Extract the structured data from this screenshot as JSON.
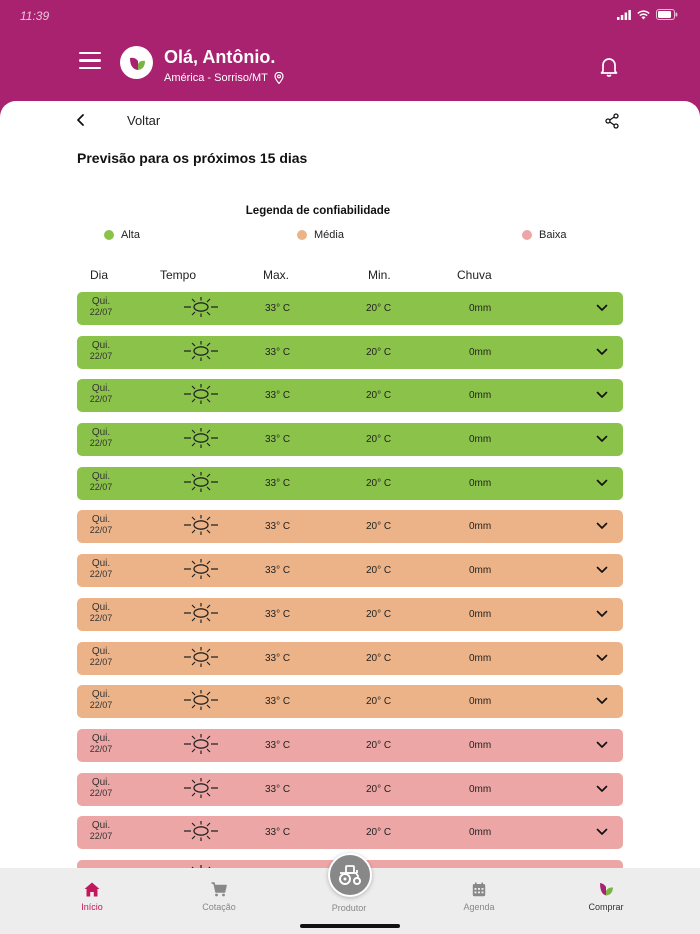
{
  "status_bar": {
    "time": "11:39"
  },
  "header": {
    "greeting": "Olá, Antônio.",
    "location": "América - Sorriso/MT"
  },
  "nav": {
    "back_label": "Voltar"
  },
  "page_title": "Previsão para os próximos 15 dias",
  "legend": {
    "title": "Legenda de confiabilidade",
    "items": [
      {
        "label": "Alta",
        "color": "#8bc34a"
      },
      {
        "label": "Média",
        "color": "#edb388"
      },
      {
        "label": "Baixa",
        "color": "#eda6a6"
      }
    ]
  },
  "columns": {
    "day": "Dia",
    "weather": "Tempo",
    "max": "Max.",
    "min": "Min.",
    "rain": "Chuva"
  },
  "colors": {
    "alta": "#8bc34a",
    "media": "#edb388",
    "baixa": "#eda6a6",
    "brand": "#a8226f",
    "accent": "#c2185b"
  },
  "rows": [
    {
      "day": "Qui.",
      "date": "22/07",
      "icon": "sun-icon",
      "max": "33° C",
      "min": "20° C",
      "rain": "0mm",
      "confidence": "alta"
    },
    {
      "day": "Qui.",
      "date": "22/07",
      "icon": "sun-icon",
      "max": "33° C",
      "min": "20° C",
      "rain": "0mm",
      "confidence": "alta"
    },
    {
      "day": "Qui.",
      "date": "22/07",
      "icon": "sun-icon",
      "max": "33° C",
      "min": "20° C",
      "rain": "0mm",
      "confidence": "alta"
    },
    {
      "day": "Qui.",
      "date": "22/07",
      "icon": "sun-icon",
      "max": "33° C",
      "min": "20° C",
      "rain": "0mm",
      "confidence": "alta"
    },
    {
      "day": "Qui.",
      "date": "22/07",
      "icon": "sun-icon",
      "max": "33° C",
      "min": "20° C",
      "rain": "0mm",
      "confidence": "alta"
    },
    {
      "day": "Qui.",
      "date": "22/07",
      "icon": "sun-icon",
      "max": "33° C",
      "min": "20° C",
      "rain": "0mm",
      "confidence": "media"
    },
    {
      "day": "Qui.",
      "date": "22/07",
      "icon": "sun-icon",
      "max": "33° C",
      "min": "20° C",
      "rain": "0mm",
      "confidence": "media"
    },
    {
      "day": "Qui.",
      "date": "22/07",
      "icon": "sun-icon",
      "max": "33° C",
      "min": "20° C",
      "rain": "0mm",
      "confidence": "media"
    },
    {
      "day": "Qui.",
      "date": "22/07",
      "icon": "sun-icon",
      "max": "33° C",
      "min": "20° C",
      "rain": "0mm",
      "confidence": "media"
    },
    {
      "day": "Qui.",
      "date": "22/07",
      "icon": "sun-icon",
      "max": "33° C",
      "min": "20° C",
      "rain": "0mm",
      "confidence": "media"
    },
    {
      "day": "Qui.",
      "date": "22/07",
      "icon": "sun-icon",
      "max": "33° C",
      "min": "20° C",
      "rain": "0mm",
      "confidence": "baixa"
    },
    {
      "day": "Qui.",
      "date": "22/07",
      "icon": "sun-icon",
      "max": "33° C",
      "min": "20° C",
      "rain": "0mm",
      "confidence": "baixa"
    },
    {
      "day": "Qui.",
      "date": "22/07",
      "icon": "sun-icon",
      "max": "33° C",
      "min": "20° C",
      "rain": "0mm",
      "confidence": "baixa"
    },
    {
      "day": "",
      "date": "",
      "icon": "sun-icon",
      "max": "",
      "min": "",
      "rain": "",
      "confidence": "baixa"
    }
  ],
  "bottom_nav": {
    "items": [
      {
        "label": "Início",
        "icon": "home-icon",
        "active": true
      },
      {
        "label": "Cotação",
        "icon": "cart-icon",
        "active": false
      },
      {
        "label": "Produtor",
        "icon": "tractor-icon",
        "active": false
      },
      {
        "label": "Agenda",
        "icon": "calendar-icon",
        "active": false
      },
      {
        "label": "Comprar",
        "icon": "leaf-logo-icon",
        "active": false
      }
    ]
  }
}
